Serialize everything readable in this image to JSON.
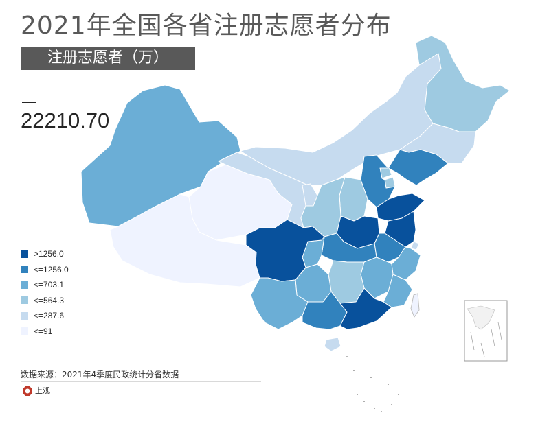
{
  "title": "2021年全国各省注册志愿者分布",
  "subtitle": "注册志愿者（万）",
  "total": "22210.70",
  "legend": [
    {
      "label": ">1256.0",
      "color": "#08519c"
    },
    {
      "label": "<=1256.0",
      "color": "#3182bd"
    },
    {
      "label": "<=703.1",
      "color": "#6baed6"
    },
    {
      "label": "<=564.3",
      "color": "#9ecae1"
    },
    {
      "label": "<=287.6",
      "color": "#c6dbef"
    },
    {
      "label": "<=91",
      "color": "#eff3ff"
    }
  ],
  "source": "数据来源：2021年4季度民政统计分省数据",
  "logo": {
    "name": "上观"
  },
  "map_classes": {
    "xinjiang": 3,
    "tibet": 6,
    "qinghai": 6,
    "gansu": 5,
    "inner_mongolia": 5,
    "heilongjiang": 4,
    "jilin": 5,
    "liaoning": 2,
    "hebei": 2,
    "beijing": 4,
    "tianjin": 4,
    "shanxi": 4,
    "shaanxi": 4,
    "ningxia": 5,
    "shandong": 1,
    "henan": 1,
    "jiangsu": 1,
    "anhui": 2,
    "hubei": 2,
    "sichuan": 1,
    "chongqing": 3,
    "guizhou": 3,
    "yunnan": 3,
    "hunan": 4,
    "jiangxi": 3,
    "zhejiang": 3,
    "fujian": 3,
    "guangxi": 2,
    "guangdong": 1,
    "hainan": 5,
    "shanghai": 5,
    "taiwan": 6
  }
}
